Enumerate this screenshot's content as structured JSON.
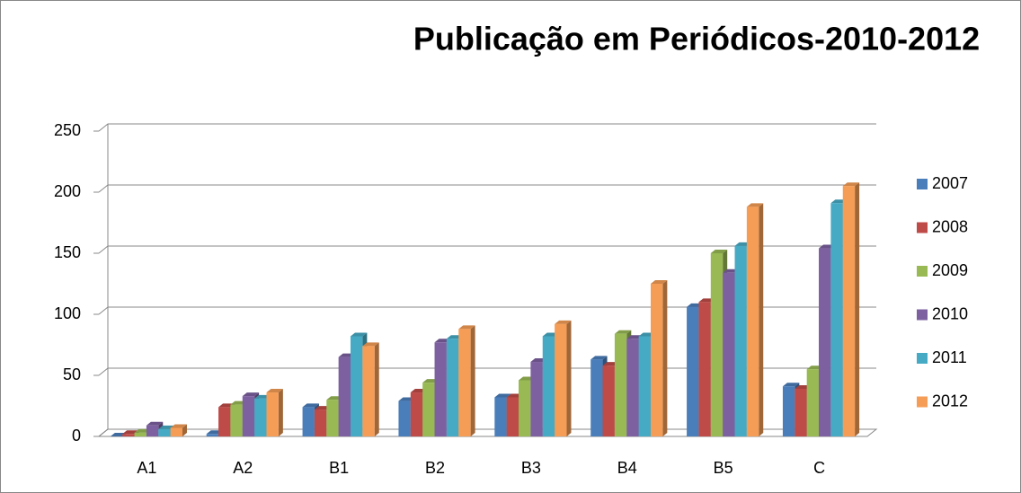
{
  "chart_data": {
    "type": "bar",
    "title": "Publicação em Periódicos-2010-2012",
    "categories": [
      "A1",
      "A2",
      "B1",
      "B2",
      "B3",
      "B4",
      "B5",
      "C"
    ],
    "series": [
      {
        "name": "2007",
        "color": "#4a7ebb",
        "values": [
          0,
          2,
          24,
          29,
          32,
          63,
          106,
          41
        ]
      },
      {
        "name": "2008",
        "color": "#be4b48",
        "values": [
          2,
          24,
          22,
          36,
          32,
          58,
          110,
          39
        ]
      },
      {
        "name": "2009",
        "color": "#98b954",
        "values": [
          3,
          26,
          30,
          44,
          46,
          84,
          150,
          55
        ]
      },
      {
        "name": "2010",
        "color": "#7d60a0",
        "values": [
          9,
          33,
          65,
          77,
          61,
          80,
          134,
          154
        ]
      },
      {
        "name": "2011",
        "color": "#46aac5",
        "values": [
          6,
          31,
          82,
          80,
          82,
          82,
          156,
          191
        ]
      },
      {
        "name": "2012",
        "color": "#f59d56",
        "values": [
          7,
          36,
          74,
          88,
          92,
          125,
          188,
          205
        ]
      }
    ],
    "ylim": [
      0,
      250
    ],
    "yticks": [
      0,
      50,
      100,
      150,
      200,
      250
    ],
    "grid": true,
    "legend": "right"
  }
}
